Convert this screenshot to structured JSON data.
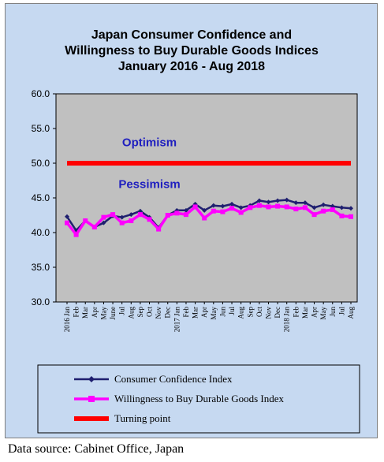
{
  "chart_data": {
    "type": "line",
    "title": [
      "Japan Consumer Confidence and",
      "Willingness to Buy Durable Goods Indices",
      "January 2016 - Aug 2018"
    ],
    "xlabel": "",
    "ylabel": "",
    "ylim": [
      30,
      60
    ],
    "yticks": [
      "30.0",
      "35.0",
      "40.0",
      "45.0",
      "50.0",
      "55.0",
      "60.0"
    ],
    "grid": false,
    "legend_position": "bottom",
    "categories": [
      "2016 Jan",
      "Feb",
      "Mar",
      "Apr",
      "May",
      "June",
      "Jul",
      "Aug",
      "Sep",
      "Oct",
      "Nov",
      "Dec",
      "2017 Jan",
      "Feb",
      "Mar",
      "Apr",
      "May",
      "Jun",
      "Jul",
      "Aug",
      "Sep",
      "Oct",
      "Nov",
      "Dec",
      "2018 Jan",
      "Feb",
      "Mar",
      "Apr",
      "May",
      "Jun",
      "Jul",
      "Aug"
    ],
    "xtick_labels": [
      "2016 Jan",
      "Feb",
      "Mar",
      "Apr",
      "May",
      "June",
      "Jul",
      "Aug",
      "Sep",
      "Oct",
      "Nov",
      "Dec",
      "2017 Jan",
      "Feb",
      "Mar",
      "Apr",
      "May",
      "Jun",
      "Jul",
      "Aug",
      "Sep",
      "Oct",
      "Nov",
      "Dec",
      "2018 Jan",
      "Feb",
      "Mar",
      "Apr",
      "May",
      "Jun",
      "Jul",
      "Aug"
    ],
    "series": [
      {
        "name": "Consumer Confidence Index",
        "color": "#1f1f6f",
        "marker": "diamond",
        "values": [
          42.3,
          40.3,
          41.7,
          40.8,
          41.4,
          42.4,
          42.2,
          42.6,
          43.1,
          42.2,
          40.7,
          42.5,
          43.2,
          43.2,
          44.1,
          43.2,
          43.9,
          43.8,
          44.1,
          43.6,
          43.9,
          44.6,
          44.4,
          44.6,
          44.7,
          44.3,
          44.3,
          43.6,
          44.0,
          43.8,
          43.6,
          43.5
        ]
      },
      {
        "name": "Willingness to Buy Durable Goods Index",
        "color": "#ff00ff",
        "marker": "square",
        "values": [
          41.4,
          39.7,
          41.7,
          40.8,
          42.2,
          42.6,
          41.4,
          41.7,
          42.6,
          41.9,
          40.5,
          42.5,
          42.8,
          42.6,
          43.7,
          42.1,
          43.1,
          43.0,
          43.5,
          42.9,
          43.6,
          43.9,
          43.7,
          43.8,
          43.7,
          43.4,
          43.6,
          42.6,
          43.1,
          43.3,
          42.4,
          42.3
        ]
      },
      {
        "name": "Turning point",
        "color": "#ff0000",
        "marker": "none",
        "values": [
          50,
          50,
          50,
          50,
          50,
          50,
          50,
          50,
          50,
          50,
          50,
          50,
          50,
          50,
          50,
          50,
          50,
          50,
          50,
          50,
          50,
          50,
          50,
          50,
          50,
          50,
          50,
          50,
          50,
          50,
          50,
          50
        ]
      }
    ],
    "annotations": [
      {
        "text": "Optimism",
        "y": 53,
        "at_category": "Oct"
      },
      {
        "text": "Pessimism",
        "y": 47,
        "at_category": "Oct"
      }
    ]
  },
  "source": "Data source: Cabinet Office, Japan"
}
